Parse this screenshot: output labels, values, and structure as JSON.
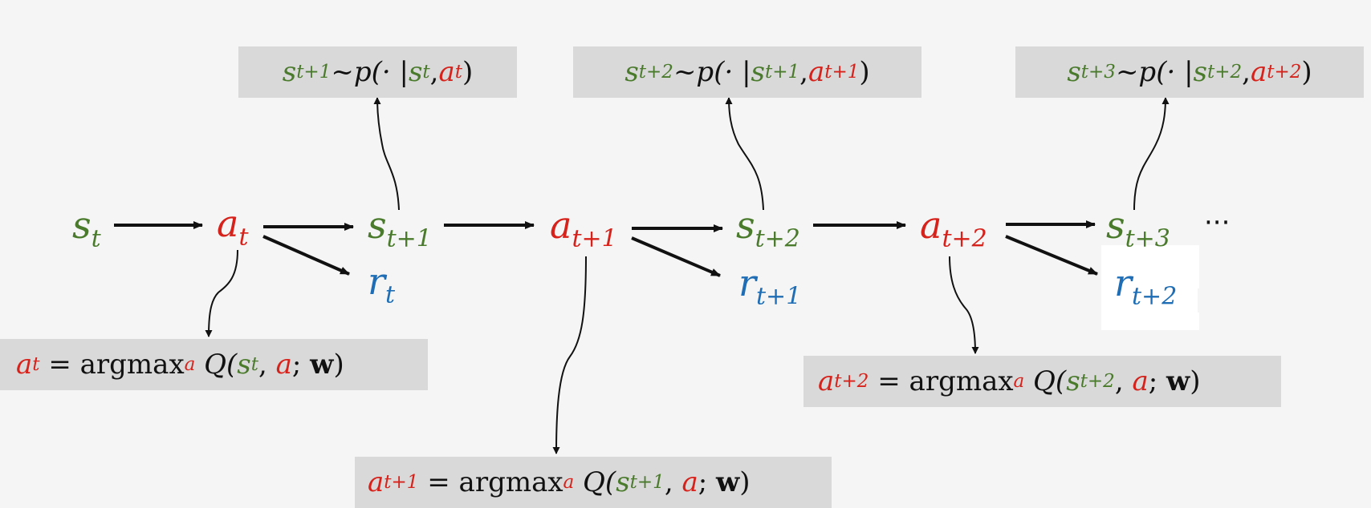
{
  "colors": {
    "state": "#4a7a2c",
    "action": "#d6221b",
    "reward": "#1f6eb5",
    "box": "#d9d9d9",
    "background": "#f5f5f5"
  },
  "nodes": {
    "s_t": {
      "base": "s",
      "sub": "t"
    },
    "a_t": {
      "base": "a",
      "sub": "t"
    },
    "s_t1": {
      "base": "s",
      "sub": "t+1"
    },
    "r_t": {
      "base": "r",
      "sub": "t"
    },
    "a_t1": {
      "base": "a",
      "sub": "t+1"
    },
    "s_t2": {
      "base": "s",
      "sub": "t+2"
    },
    "r_t1": {
      "base": "r",
      "sub": "t+1"
    },
    "a_t2": {
      "base": "a",
      "sub": "t+2"
    },
    "s_t3": {
      "base": "s",
      "sub": "t+3"
    },
    "r_t2": {
      "base": "r",
      "sub": "t+2"
    },
    "ellipsis": "···"
  },
  "transition_boxes": [
    {
      "s_next": "s",
      "s_next_sub": "t+1",
      "tilde_p": "~p(· |",
      "s_cur": "s",
      "s_cur_sub": "t",
      "comma": ", ",
      "a_cur": "a",
      "a_cur_sub": "t",
      "close": ")"
    },
    {
      "s_next": "s",
      "s_next_sub": "t+2",
      "tilde_p": "~p(· |",
      "s_cur": "s",
      "s_cur_sub": "t+1",
      "comma": ", ",
      "a_cur": "a",
      "a_cur_sub": "t+1",
      "close": ")"
    },
    {
      "s_next": "s",
      "s_next_sub": "t+3",
      "tilde_p": "~p(· |",
      "s_cur": "s",
      "s_cur_sub": "t+2",
      "comma": ", ",
      "a_cur": "a",
      "a_cur_sub": "t+2",
      "close": ")"
    }
  ],
  "policy_boxes": [
    {
      "a": "a",
      "a_sub": "t",
      "eq": " = ",
      "argmax": "argmax",
      "argmax_sub": "a",
      "Q": " Q(",
      "s": "s",
      "s_sub": "t",
      "comma": ", ",
      "a_var": "a",
      "semi": "; ",
      "w": "w",
      "close": ")"
    },
    {
      "a": "a",
      "a_sub": "t+1",
      "eq": " = ",
      "argmax": "argmax",
      "argmax_sub": "a",
      "Q": " Q(",
      "s": "s",
      "s_sub": "t+1",
      "comma": ", ",
      "a_var": "a",
      "semi": "; ",
      "w": "w",
      "close": ")"
    },
    {
      "a": "a",
      "a_sub": "t+2",
      "eq": " = ",
      "argmax": "argmax",
      "argmax_sub": "a",
      "Q": " Q(",
      "s": "s",
      "s_sub": "t+2",
      "comma": ", ",
      "a_var": "a",
      "semi": "; ",
      "w": "w",
      "close": ")"
    }
  ]
}
